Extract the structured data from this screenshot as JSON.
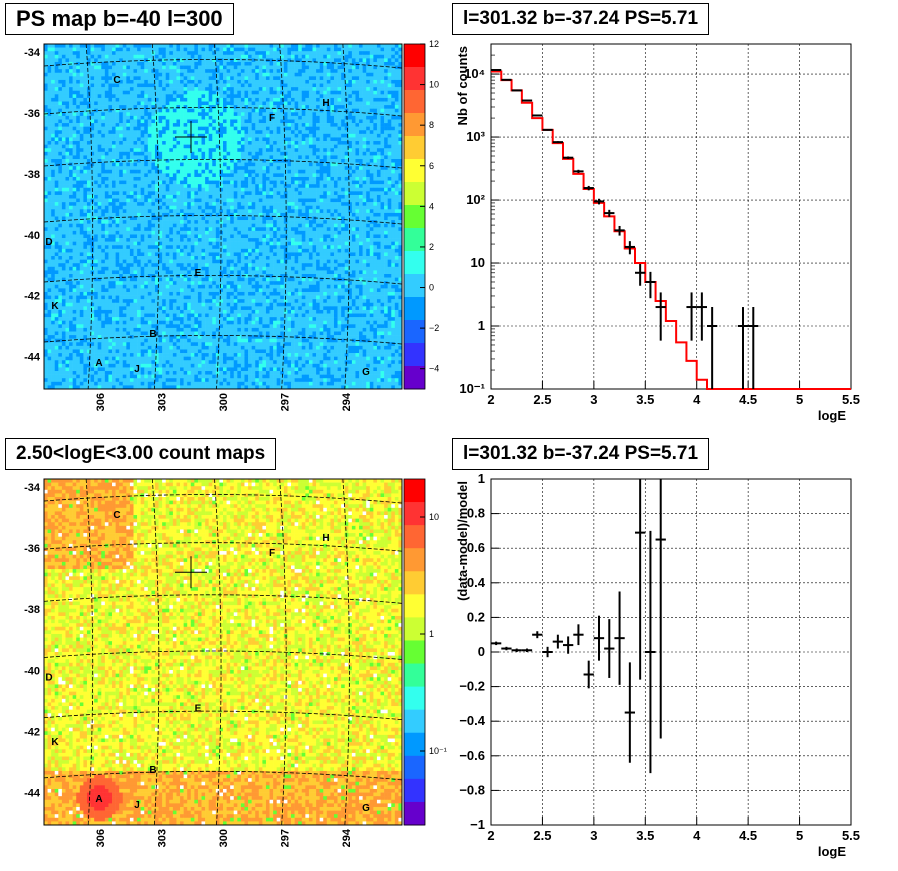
{
  "panels": {
    "tl_title": "PS map b=-40 l=300",
    "tr_title": "l=301.32 b=-37.24 PS=5.71",
    "bl_title": "2.50<logE<3.00 count maps",
    "br_title": "l=301.32 b=-37.24 PS=5.71"
  },
  "chart_data": [
    {
      "type": "heatmap",
      "title": "PS map b=-40 l=300",
      "y_tick_labels": [
        "-34",
        "-36",
        "-38",
        "-40",
        "-42",
        "-44"
      ],
      "x_tick_labels": [
        "306",
        "303",
        "300",
        "297",
        "294"
      ],
      "colorbar": {
        "min": -5,
        "max": 12,
        "tick_labels": [
          "12",
          "10",
          "8",
          "6",
          "4",
          "2",
          "0",
          "−2",
          "−4"
        ],
        "scale": "linear"
      },
      "source_labels": [
        "C",
        "H",
        "F",
        "D",
        "E",
        "K",
        "B",
        "A",
        "J",
        "G"
      ],
      "marker": {
        "l": 301.32,
        "b": -37.24
      }
    },
    {
      "type": "line",
      "title": "l=301.32 b=-37.24 PS=5.71",
      "xlabel": "logE",
      "ylabel": "Nb of counts",
      "xlim": [
        2,
        5.5
      ],
      "ylim": [
        0.1,
        30000
      ],
      "yscale": "log",
      "x_tick_labels": [
        "2",
        "2.5",
        "3",
        "3.5",
        "4",
        "4.5",
        "5",
        "5.5"
      ],
      "y_tick_labels": [
        "10⁻¹",
        "1",
        "10",
        "10²",
        "10³",
        "10⁴"
      ],
      "grid": true,
      "series": [
        {
          "kind": "model-step",
          "color": "#ff0000",
          "bin_edges": [
            2.0,
            2.1,
            2.2,
            2.3,
            2.4,
            2.5,
            2.6,
            2.7,
            2.8,
            2.9,
            3.0,
            3.1,
            3.2,
            3.3,
            3.4,
            3.5,
            3.6,
            3.7,
            3.8,
            3.9,
            4.0,
            4.1,
            4.2,
            4.3,
            4.4,
            4.5,
            4.6,
            4.7,
            4.8,
            4.9,
            5.0,
            5.1,
            5.2,
            5.3,
            5.4,
            5.5
          ],
          "values": [
            11000,
            8000,
            5500,
            3500,
            2000,
            1300,
            800,
            450,
            260,
            150,
            90,
            55,
            32,
            17,
            10,
            5,
            2.5,
            1.2,
            0.55,
            0.28,
            0.14,
            0.1,
            0.1,
            0.1,
            0.1,
            0.1,
            0.1,
            0.1,
            0.1,
            0.1,
            0.1,
            0.1,
            0.1,
            0.1,
            0.1
          ]
        },
        {
          "kind": "data-points",
          "color": "#000000",
          "x": [
            2.05,
            2.15,
            2.25,
            2.35,
            2.45,
            2.55,
            2.65,
            2.75,
            2.85,
            2.95,
            3.05,
            3.15,
            3.25,
            3.35,
            3.45,
            3.55,
            3.65,
            3.95,
            4.05,
            4.15,
            4.45,
            4.55
          ],
          "y": [
            11600,
            8100,
            5500,
            3800,
            2200,
            1300,
            830,
            470,
            285,
            155,
            95,
            62,
            33,
            18,
            7,
            5,
            2,
            2,
            2,
            1,
            1,
            1
          ]
        }
      ]
    },
    {
      "type": "heatmap",
      "title": "2.50<logE<3.00 count maps",
      "y_tick_labels": [
        "-34",
        "-36",
        "-38",
        "-40",
        "-42",
        "-44"
      ],
      "x_tick_labels": [
        "306",
        "303",
        "300",
        "297",
        "294"
      ],
      "colorbar": {
        "scale": "log",
        "tick_labels": [
          "10",
          "1",
          "10⁻¹"
        ]
      },
      "source_labels": [
        "C",
        "H",
        "F",
        "D",
        "E",
        "K",
        "B",
        "A",
        "J",
        "G"
      ],
      "marker": {
        "l": 301.32,
        "b": -37.24
      }
    },
    {
      "type": "scatter",
      "title": "l=301.32 b=-37.24 PS=5.71",
      "xlabel": "logE",
      "ylabel": "(data-model)/model",
      "xlim": [
        2,
        5.5
      ],
      "ylim": [
        -1,
        1
      ],
      "x_tick_labels": [
        "2",
        "2.5",
        "3",
        "3.5",
        "4",
        "4.5",
        "5",
        "5.5"
      ],
      "y_tick_labels": [
        "1",
        "0.8",
        "0.6",
        "0.4",
        "0.2",
        "0",
        "−0.2",
        "−0.4",
        "−0.6",
        "−0.8",
        "−1"
      ],
      "grid": true,
      "series": [
        {
          "kind": "data-points",
          "color": "#000000",
          "x": [
            2.05,
            2.15,
            2.25,
            2.35,
            2.45,
            2.55,
            2.65,
            2.75,
            2.85,
            2.95,
            3.05,
            3.15,
            3.25,
            3.35,
            3.45,
            3.55,
            3.65
          ],
          "y": [
            0.05,
            0.02,
            0.01,
            0.01,
            0.1,
            0.0,
            0.06,
            0.04,
            0.1,
            -0.13,
            0.08,
            0.02,
            0.08,
            -0.35,
            0.69,
            0.0,
            0.65
          ],
          "err": [
            0.01,
            0.01,
            0.01,
            0.01,
            0.02,
            0.03,
            0.04,
            0.05,
            0.06,
            0.08,
            0.13,
            0.17,
            0.27,
            0.29,
            0.85,
            0.7,
            1.15
          ]
        }
      ]
    }
  ]
}
